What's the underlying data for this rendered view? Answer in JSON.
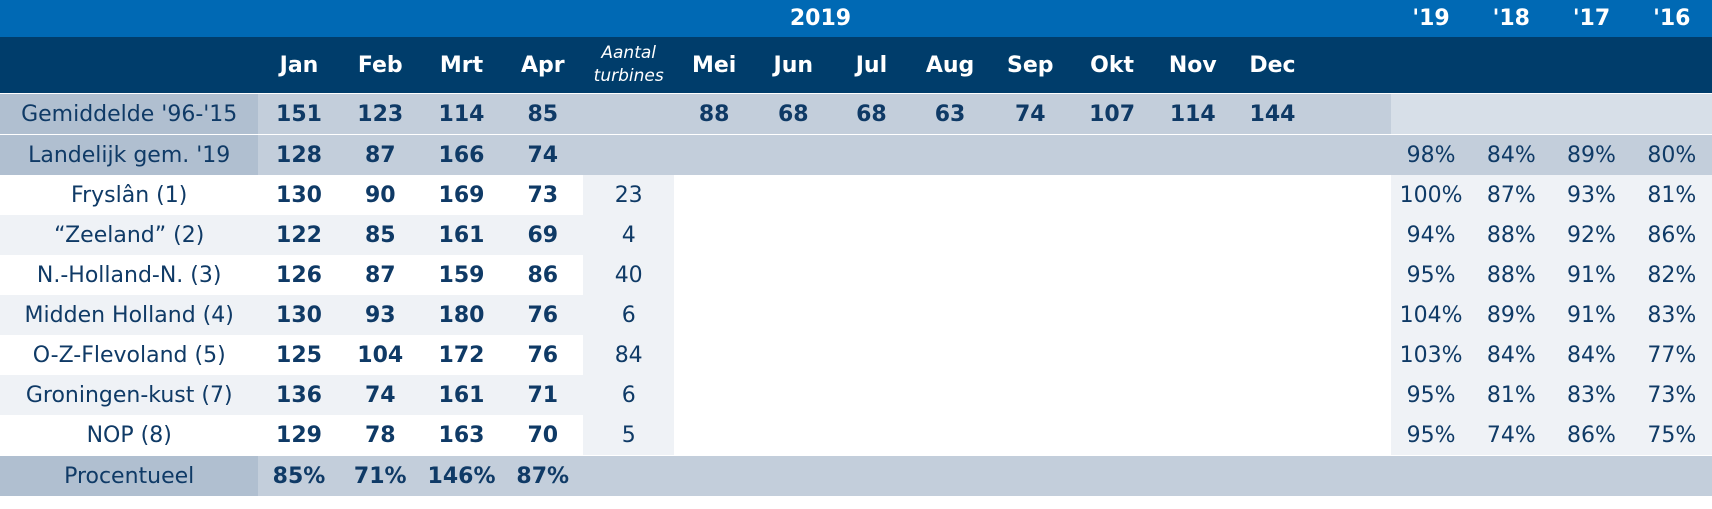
{
  "header": {
    "year_label": "2019",
    "months": [
      "Jan",
      "Feb",
      "Mrt",
      "Apr",
      "Mei",
      "Jun",
      "Jul",
      "Aug",
      "Sep",
      "Okt",
      "Nov",
      "Dec"
    ],
    "turbines_label_line1": "Aantal",
    "turbines_label_line2": "turbines",
    "years": [
      "'19",
      "'18",
      "'17",
      "'16"
    ]
  },
  "average_row": {
    "label": "Gemiddelde '96-'15",
    "values": [
      "151",
      "123",
      "114",
      "85",
      "88",
      "68",
      "68",
      "63",
      "74",
      "107",
      "114",
      "144"
    ]
  },
  "national_row": {
    "label": "Landelijk gem. '19",
    "values": [
      "128",
      "87",
      "166",
      "74"
    ],
    "years": [
      "98%",
      "84%",
      "89%",
      "80%"
    ]
  },
  "regions": [
    {
      "name": "Fryslân (1)",
      "values": [
        "130",
        "90",
        "169",
        "73"
      ],
      "turbines": "23",
      "years": [
        "100%",
        "87%",
        "93%",
        "81%"
      ]
    },
    {
      "name": "“Zeeland” (2)",
      "values": [
        "122",
        "85",
        "161",
        "69"
      ],
      "turbines": "4",
      "years": [
        "94%",
        "88%",
        "92%",
        "86%"
      ]
    },
    {
      "name": "N.-Holland-N. (3)",
      "values": [
        "126",
        "87",
        "159",
        "86"
      ],
      "turbines": "40",
      "years": [
        "95%",
        "88%",
        "91%",
        "82%"
      ]
    },
    {
      "name": "Midden Holland (4)",
      "values": [
        "130",
        "93",
        "180",
        "76"
      ],
      "turbines": "6",
      "years": [
        "104%",
        "89%",
        "91%",
        "83%"
      ]
    },
    {
      "name": "O-Z-Flevoland (5)",
      "values": [
        "125",
        "104",
        "172",
        "76"
      ],
      "turbines": "84",
      "years": [
        "103%",
        "84%",
        "84%",
        "77%"
      ]
    },
    {
      "name": "Groningen-kust (7)",
      "values": [
        "136",
        "74",
        "161",
        "71"
      ],
      "turbines": "6",
      "years": [
        "95%",
        "81%",
        "83%",
        "73%"
      ]
    },
    {
      "name": "NOP (8)",
      "values": [
        "129",
        "78",
        "163",
        "70"
      ],
      "turbines": "5",
      "years": [
        "95%",
        "74%",
        "86%",
        "75%"
      ]
    }
  ],
  "percent_row": {
    "label": "Procentueel",
    "values": [
      "85%",
      "71%",
      "146%",
      "87%"
    ]
  }
}
